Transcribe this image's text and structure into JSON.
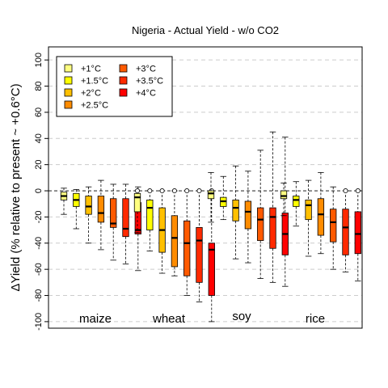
{
  "chart_data": {
    "type": "boxplot",
    "title": "Nigeria - Actual Yield - w/o CO2",
    "ylabel": "ΔYield (% relative to present ~ +0.6°C)",
    "ylim": [
      -105,
      110
    ],
    "yticks": [
      -100,
      -80,
      -60,
      -40,
      -20,
      0,
      20,
      40,
      60,
      80,
      100
    ],
    "grid": true,
    "legend_position": "top-left",
    "crops": [
      "maize",
      "wheat",
      "soy",
      "rice"
    ],
    "series": [
      {
        "name": "+1°C",
        "color": "#ffff80"
      },
      {
        "name": "+1.5°C",
        "color": "#ffff00"
      },
      {
        "name": "+2°C",
        "color": "#ffc000"
      },
      {
        "name": "+2.5°C",
        "color": "#ff8c00"
      },
      {
        "name": "+3°C",
        "color": "#ff5a00"
      },
      {
        "name": "+3.5°C",
        "color": "#ff2a00"
      },
      {
        "name": "+4°C",
        "color": "#ff0000"
      }
    ],
    "boxes": [
      {
        "crop": "maize",
        "series": "+1°C",
        "min": -18,
        "q1": -7,
        "median": -4,
        "q3": -1,
        "max": 2
      },
      {
        "crop": "maize",
        "series": "+1.5°C",
        "min": -29,
        "q1": -12,
        "median": -7,
        "q3": -2,
        "max": 1
      },
      {
        "crop": "maize",
        "series": "+2°C",
        "min": -40,
        "q1": -18,
        "median": -12,
        "q3": -4,
        "max": 3
      },
      {
        "crop": "maize",
        "series": "+2.5°C",
        "min": -45,
        "q1": -24,
        "median": -17,
        "q3": -4,
        "max": 8
      },
      {
        "crop": "maize",
        "series": "+3°C",
        "min": -53,
        "q1": -28,
        "median": -25,
        "q3": -6,
        "max": 5
      },
      {
        "crop": "maize",
        "series": "+3.5°C",
        "min": -56,
        "q1": -35,
        "median": -29,
        "q3": -6,
        "max": 5
      },
      {
        "crop": "maize",
        "series": "+4°C",
        "min": -61,
        "q1": -33,
        "median": -30,
        "q3": -9,
        "max": 3
      },
      {
        "crop": "wheat",
        "series": "+1°C",
        "min": -32,
        "q1": -16,
        "median": -5,
        "q3": -2,
        "max": 0
      },
      {
        "crop": "wheat",
        "series": "+1.5°C",
        "min": -46,
        "q1": -30,
        "median": -13,
        "q3": -7,
        "max": 0
      },
      {
        "crop": "wheat",
        "series": "+2°C",
        "min": -63,
        "q1": -47,
        "median": -30,
        "q3": -13,
        "max": 0
      },
      {
        "crop": "wheat",
        "series": "+2.5°C",
        "min": -65,
        "q1": -58,
        "median": -36,
        "q3": -19,
        "max": 0
      },
      {
        "crop": "wheat",
        "series": "+3°C",
        "min": -80,
        "q1": -65,
        "median": -40,
        "q3": -23,
        "max": 0
      },
      {
        "crop": "wheat",
        "series": "+3.5°C",
        "min": -85,
        "q1": -70,
        "median": -38,
        "q3": -28,
        "max": 0
      },
      {
        "crop": "wheat",
        "series": "+4°C",
        "min": -100,
        "q1": -80,
        "median": -45,
        "q3": -40,
        "max": 0
      },
      {
        "crop": "soy",
        "series": "+1°C",
        "min": -24,
        "q1": -6,
        "median": -2,
        "q3": 0,
        "max": 14
      },
      {
        "crop": "soy",
        "series": "+1.5°C",
        "min": -22,
        "q1": -12,
        "median": -8,
        "q3": -5,
        "max": 11
      },
      {
        "crop": "soy",
        "series": "+2°C",
        "min": -52,
        "q1": -23,
        "median": -13,
        "q3": -7,
        "max": 19
      },
      {
        "crop": "soy",
        "series": "+2.5°C",
        "min": -55,
        "q1": -29,
        "median": -16,
        "q3": -8,
        "max": 15
      },
      {
        "crop": "soy",
        "series": "+3°C",
        "min": -67,
        "q1": -38,
        "median": -22,
        "q3": -13,
        "max": 31
      },
      {
        "crop": "soy",
        "series": "+3.5°C",
        "min": -70,
        "q1": -44,
        "median": -20,
        "q3": -13,
        "max": 45
      },
      {
        "crop": "soy",
        "series": "+4°C",
        "min": -73,
        "q1": -49,
        "median": -33,
        "q3": -17,
        "max": 41
      },
      {
        "crop": "rice",
        "series": "+1°C",
        "min": -19,
        "q1": -6,
        "median": -4,
        "q3": 0,
        "max": 6
      },
      {
        "crop": "rice",
        "series": "+1.5°C",
        "min": -27,
        "q1": -12,
        "median": -7,
        "q3": -4,
        "max": 7
      },
      {
        "crop": "rice",
        "series": "+2°C",
        "min": -50,
        "q1": -22,
        "median": -11,
        "q3": -7,
        "max": 8
      },
      {
        "crop": "rice",
        "series": "+2.5°C",
        "min": -48,
        "q1": -34,
        "median": -18,
        "q3": -6,
        "max": 14
      },
      {
        "crop": "rice",
        "series": "+3°C",
        "min": -60,
        "q1": -39,
        "median": -24,
        "q3": -14,
        "max": 3
      },
      {
        "crop": "rice",
        "series": "+3.5°C",
        "min": -62,
        "q1": -49,
        "median": -28,
        "q3": -14,
        "max": 0
      },
      {
        "crop": "rice",
        "series": "+4°C",
        "min": -69,
        "q1": -48,
        "median": -33,
        "q3": -16,
        "max": 0
      }
    ]
  }
}
